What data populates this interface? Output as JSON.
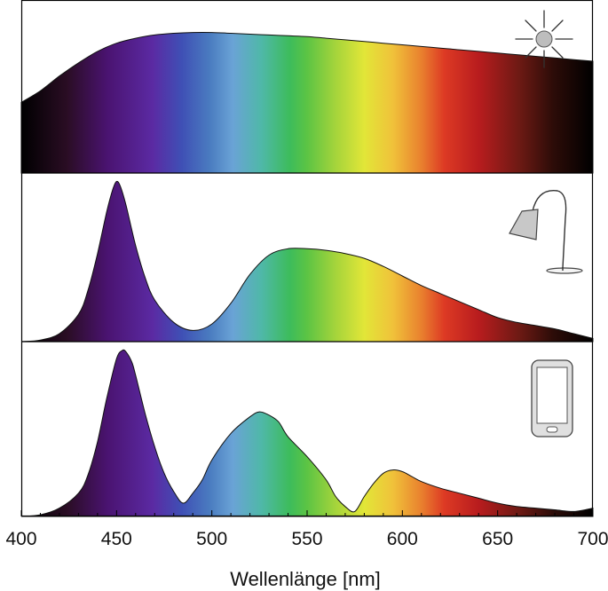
{
  "chart_data": {
    "type": "area",
    "title": "",
    "xlabel": "Wellenlänge [nm]",
    "ylabel": "",
    "xlim": [
      400,
      700
    ],
    "x_ticks": [
      "400",
      "450",
      "500",
      "550",
      "600",
      "650",
      "700"
    ],
    "grid": false,
    "fill": "visible spectrum colors",
    "panels": [
      {
        "icon": "sun-icon",
        "x": [
          400,
          410,
          420,
          430,
          440,
          450,
          460,
          470,
          480,
          490,
          500,
          510,
          520,
          530,
          540,
          550,
          560,
          570,
          580,
          590,
          600,
          610,
          620,
          630,
          640,
          650,
          660,
          670,
          680,
          690,
          700
        ],
        "y": [
          0.43,
          0.5,
          0.59,
          0.67,
          0.74,
          0.79,
          0.82,
          0.84,
          0.85,
          0.855,
          0.855,
          0.85,
          0.845,
          0.84,
          0.835,
          0.83,
          0.82,
          0.81,
          0.8,
          0.79,
          0.78,
          0.77,
          0.76,
          0.75,
          0.74,
          0.73,
          0.72,
          0.71,
          0.7,
          0.69,
          0.68
        ]
      },
      {
        "icon": "lamp-icon",
        "x": [
          400,
          410,
          420,
          430,
          435,
          440,
          445,
          448,
          450,
          452,
          455,
          460,
          465,
          470,
          480,
          490,
          500,
          510,
          520,
          530,
          540,
          550,
          560,
          570,
          580,
          590,
          600,
          610,
          620,
          630,
          640,
          650,
          660,
          670,
          680,
          690,
          700
        ],
        "y": [
          0.0,
          0.01,
          0.05,
          0.17,
          0.32,
          0.55,
          0.82,
          0.95,
          1.0,
          0.97,
          0.85,
          0.6,
          0.4,
          0.26,
          0.12,
          0.07,
          0.11,
          0.24,
          0.42,
          0.54,
          0.58,
          0.58,
          0.57,
          0.55,
          0.52,
          0.47,
          0.41,
          0.35,
          0.3,
          0.25,
          0.2,
          0.15,
          0.12,
          0.1,
          0.08,
          0.05,
          0.02
        ]
      },
      {
        "icon": "smartphone-icon",
        "x": [
          400,
          410,
          420,
          430,
          435,
          440,
          445,
          450,
          453,
          455,
          458,
          460,
          465,
          470,
          475,
          480,
          485,
          490,
          495,
          500,
          510,
          520,
          525,
          530,
          535,
          540,
          550,
          560,
          565,
          570,
          575,
          580,
          585,
          590,
          595,
          600,
          605,
          610,
          620,
          630,
          640,
          650,
          660,
          670,
          680,
          690,
          700
        ],
        "y": [
          0.0,
          0.01,
          0.05,
          0.14,
          0.25,
          0.45,
          0.72,
          0.95,
          1.0,
          0.99,
          0.93,
          0.85,
          0.62,
          0.42,
          0.26,
          0.15,
          0.08,
          0.14,
          0.22,
          0.34,
          0.5,
          0.6,
          0.63,
          0.61,
          0.57,
          0.48,
          0.36,
          0.22,
          0.12,
          0.06,
          0.03,
          0.12,
          0.2,
          0.26,
          0.28,
          0.27,
          0.24,
          0.21,
          0.17,
          0.14,
          0.11,
          0.08,
          0.06,
          0.05,
          0.04,
          0.03,
          0.05
        ]
      }
    ]
  }
}
